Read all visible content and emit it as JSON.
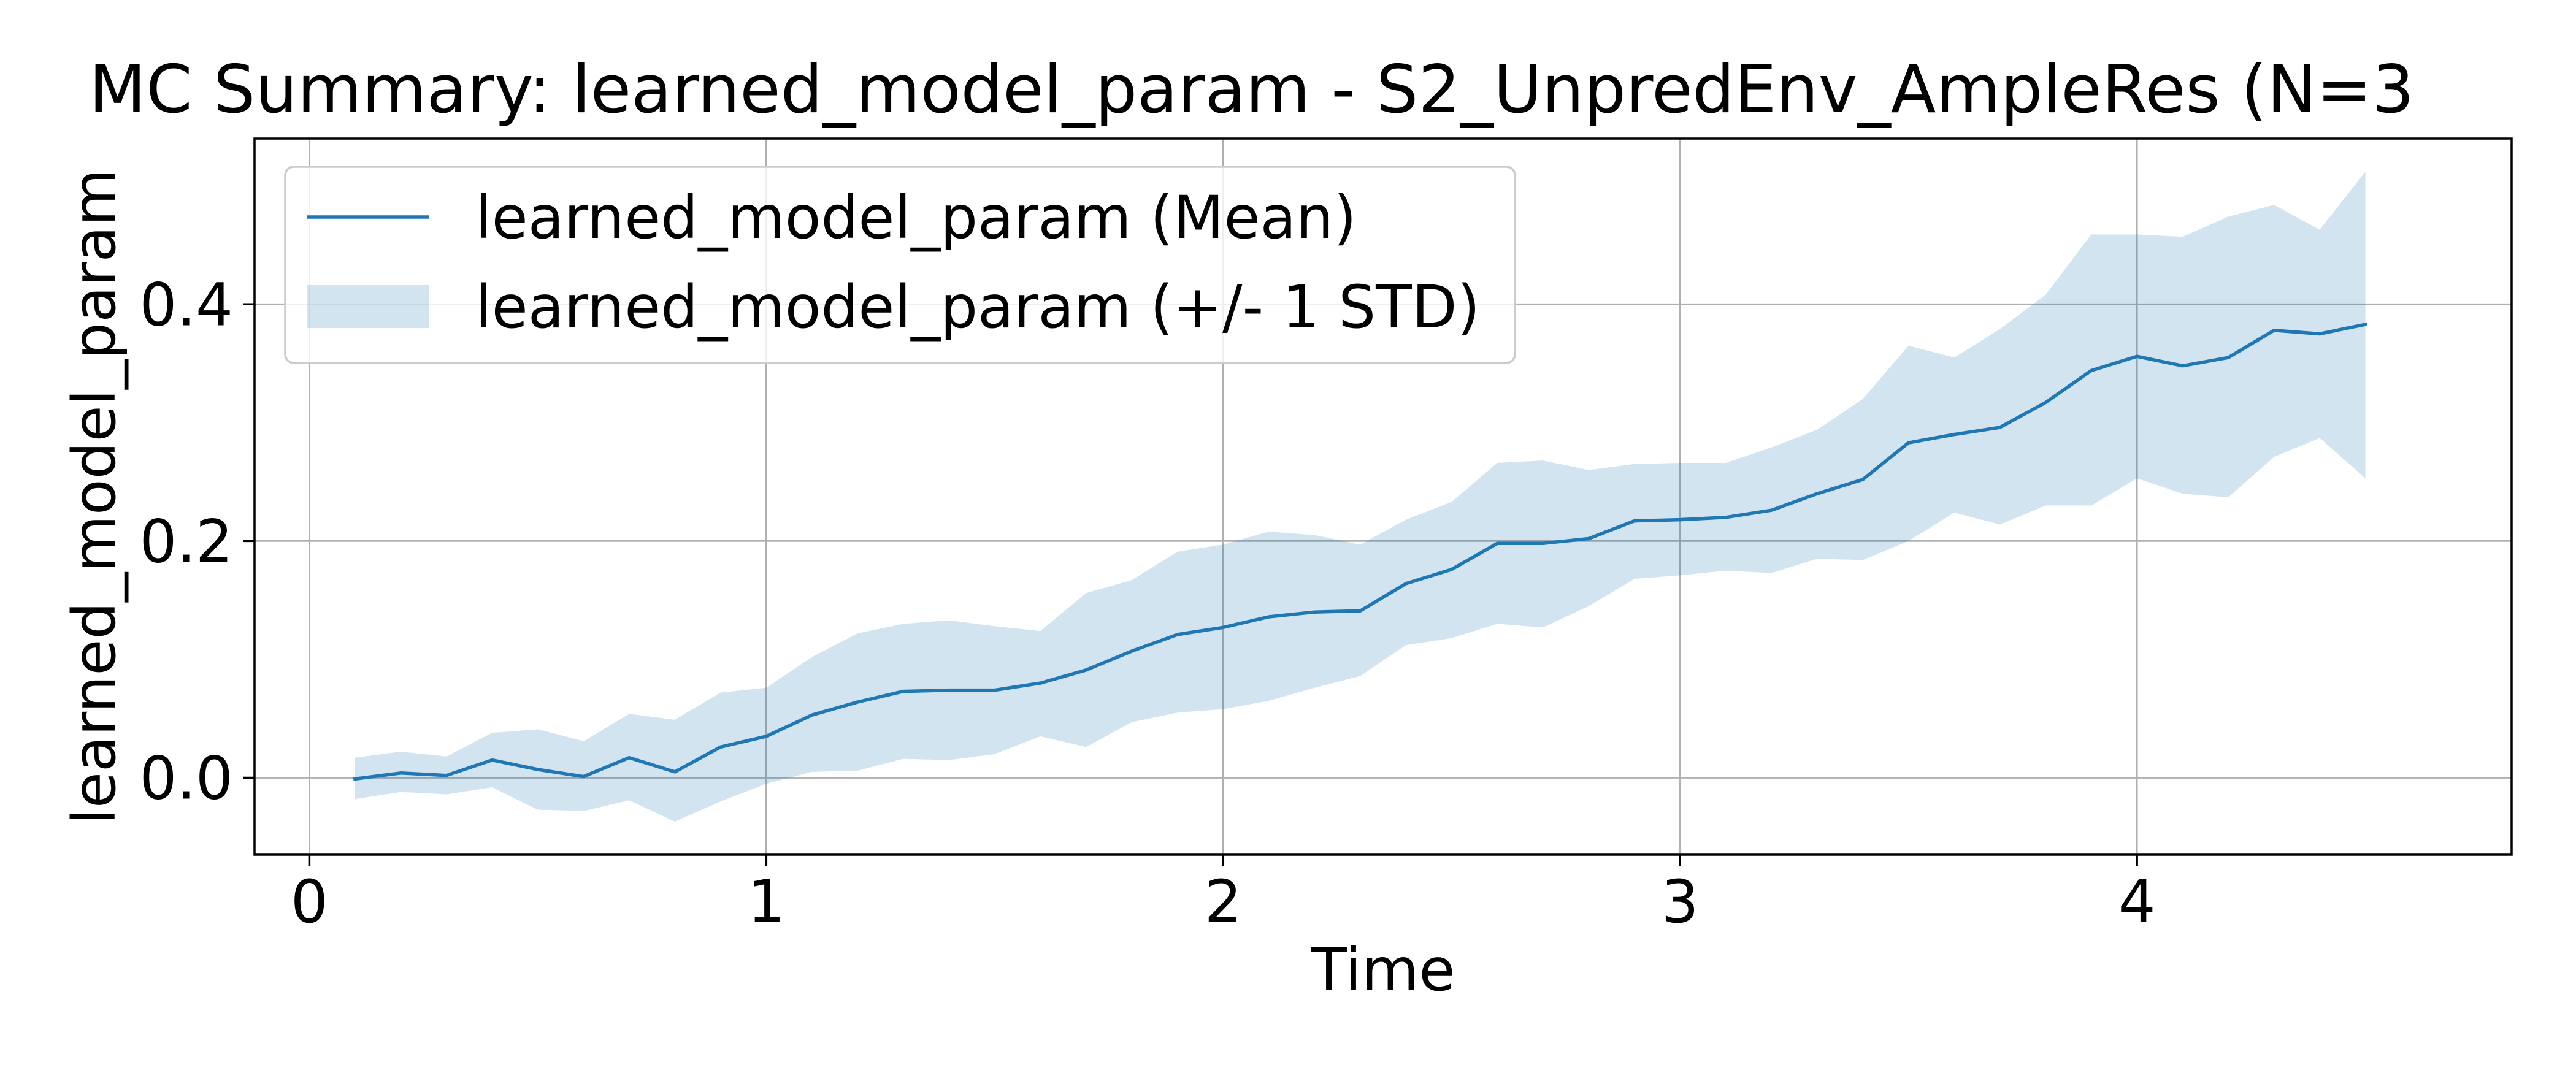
{
  "chart_data": {
    "type": "line",
    "title": "MC Summary: learned_model_param - S2_UnpredEnv_AmpleRes (N=3",
    "xlabel": "Time",
    "ylabel": "learned_model_param",
    "xlim": [
      -0.12,
      4.82
    ],
    "ylim": [
      -0.065,
      0.54
    ],
    "xticks": [
      0,
      1,
      2,
      3,
      4
    ],
    "xtick_labels": [
      "0",
      "1",
      "2",
      "3",
      "4"
    ],
    "yticks": [
      0.0,
      0.2,
      0.4
    ],
    "ytick_labels": [
      "0.0",
      "0.2",
      "0.4"
    ],
    "grid": true,
    "legend_position": "upper-left",
    "x": [
      0.1,
      0.2,
      0.3,
      0.4,
      0.5,
      0.6,
      0.7,
      0.8,
      0.9,
      1.0,
      1.1,
      1.2,
      1.3,
      1.4,
      1.5,
      1.6,
      1.7,
      1.8,
      1.9,
      2.0,
      2.1,
      2.2,
      2.3,
      2.4,
      2.5,
      2.6,
      2.7,
      2.8,
      2.9,
      3.0,
      3.1,
      3.2,
      3.3,
      3.4,
      3.5,
      3.6,
      3.7,
      3.8,
      3.9,
      4.0,
      4.1,
      4.2,
      4.3,
      4.4,
      4.5
    ],
    "series": [
      {
        "name": "learned_model_param (Mean)",
        "kind": "line",
        "color": "#1f77b4",
        "values": [
          -0.001,
          0.004,
          0.002,
          0.015,
          0.007,
          0.001,
          0.017,
          0.005,
          0.026,
          0.035,
          0.053,
          0.064,
          0.073,
          0.074,
          0.074,
          0.08,
          0.091,
          0.107,
          0.121,
          0.127,
          0.136,
          0.14,
          0.141,
          0.164,
          0.176,
          0.198,
          0.198,
          0.202,
          0.217,
          0.218,
          0.22,
          0.226,
          0.24,
          0.252,
          0.283,
          0.29,
          0.296,
          0.317,
          0.344,
          0.356,
          0.348,
          0.355,
          0.378,
          0.375,
          0.383
        ]
      },
      {
        "name": "learned_model_param (+/- 1 STD)",
        "kind": "band",
        "color": "#1f77b4",
        "opacity": 0.2,
        "upper": [
          0.017,
          0.022,
          0.018,
          0.038,
          0.041,
          0.031,
          0.054,
          0.049,
          0.072,
          0.076,
          0.102,
          0.122,
          0.13,
          0.133,
          0.128,
          0.124,
          0.156,
          0.167,
          0.191,
          0.197,
          0.208,
          0.205,
          0.197,
          0.218,
          0.233,
          0.266,
          0.268,
          0.26,
          0.265,
          0.266,
          0.266,
          0.279,
          0.294,
          0.32,
          0.365,
          0.355,
          0.379,
          0.408,
          0.459,
          0.459,
          0.457,
          0.474,
          0.484,
          0.463,
          0.512
        ]
      },
      {
        "name": "",
        "kind": "band-lower",
        "lower": [
          -0.018,
          -0.012,
          -0.014,
          -0.008,
          -0.027,
          -0.028,
          -0.019,
          -0.037,
          -0.02,
          -0.005,
          0.005,
          0.006,
          0.016,
          0.015,
          0.02,
          0.035,
          0.026,
          0.047,
          0.055,
          0.058,
          0.065,
          0.076,
          0.086,
          0.112,
          0.118,
          0.13,
          0.127,
          0.145,
          0.168,
          0.171,
          0.175,
          0.173,
          0.185,
          0.184,
          0.2,
          0.224,
          0.214,
          0.23,
          0.23,
          0.253,
          0.24,
          0.237,
          0.271,
          0.287,
          0.253
        ]
      }
    ],
    "legend": [
      {
        "label": "learned_model_param (Mean)",
        "marker": "line"
      },
      {
        "label": "learned_model_param (+/- 1 STD)",
        "marker": "patch"
      }
    ]
  }
}
